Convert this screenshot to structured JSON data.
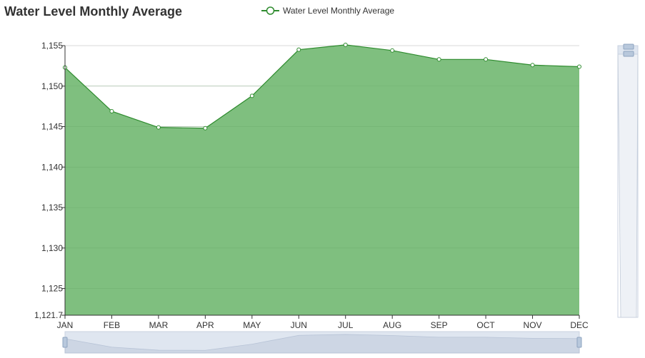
{
  "chart_data": {
    "type": "area",
    "title": "Water Level Monthly Average",
    "xlabel": "",
    "ylabel": "",
    "categories": [
      "JAN",
      "FEB",
      "MAR",
      "APR",
      "MAY",
      "JUN",
      "JUL",
      "AUG",
      "SEP",
      "OCT",
      "NOV",
      "DEC"
    ],
    "series": [
      {
        "name": "Water Level Monthly Average",
        "values": [
          1152.3,
          1146.9,
          1144.9,
          1144.8,
          1148.8,
          1154.5,
          1155.1,
          1154.4,
          1153.3,
          1153.3,
          1152.6,
          1152.4
        ]
      }
    ],
    "ylim": [
      1121.7,
      1155
    ],
    "yticks": [
      1155,
      1150,
      1145,
      1140,
      1135,
      1130,
      1125,
      1121.7
    ],
    "ytick_labels": [
      "1,155",
      "1,150",
      "1,145",
      "1,140",
      "1,135",
      "1,130",
      "1,125",
      "1,121.7"
    ],
    "grid": true,
    "legend_position": "top-center",
    "colors": {
      "line": "#2e8b2e",
      "area": "#7fbf7f",
      "grid": "#d9d9d9",
      "axis": "#333333",
      "zoom_fill": "#dfe6f0",
      "zoom_border": "#c8d2e0",
      "zoom_handle": "#b8c8dc"
    }
  }
}
